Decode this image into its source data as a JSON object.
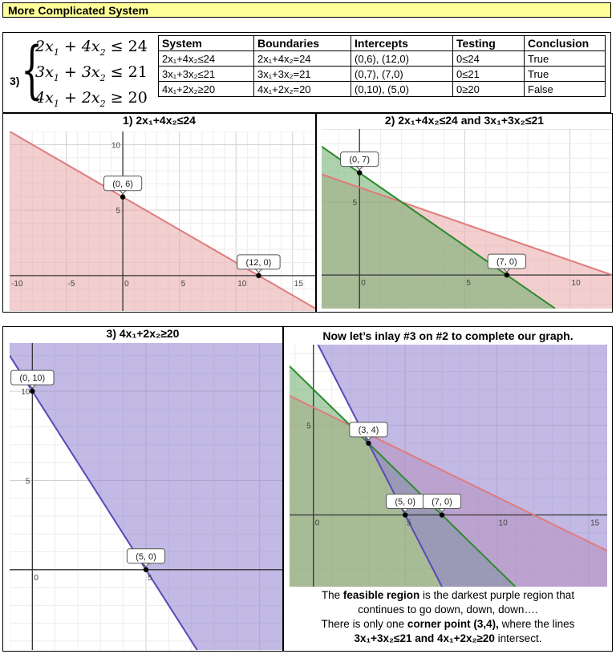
{
  "header": {
    "title": "More Complicated System"
  },
  "system": {
    "number": "3)",
    "inequalities": [
      {
        "a": "2",
        "b": "4",
        "op": "≤",
        "c": "24"
      },
      {
        "a": "3",
        "b": "3",
        "op": "≤",
        "c": "21"
      },
      {
        "a": "4",
        "b": "2",
        "op": "≥",
        "c": "20"
      }
    ]
  },
  "table": {
    "headers": [
      "System",
      "Boundaries",
      "Intercepts",
      "Testing",
      "Conclusion"
    ],
    "rows": [
      [
        "2x₁+4x₂≤24",
        "2x₁+4x₂=24",
        "(0,6), (12,0)",
        "0≤24",
        "True"
      ],
      [
        "3x₁+3x₂≤21",
        "3x₁+3x₂=21",
        "(0,7), (7,0)",
        "0≤21",
        "True"
      ],
      [
        "4x₁+2x₂≥20",
        "4x₁+2x₂=20",
        "(0,10), (5,0)",
        "0≥20",
        "False"
      ]
    ]
  },
  "graphs": {
    "g1": {
      "title": "1) 2x₁+4x₂≤24"
    },
    "g2": {
      "title": "2)  2x₁+4x₂≤24   and   3x₁+3x₂≤21"
    },
    "g3": {
      "title": "3) 4x₁+2x₂≥20"
    },
    "g4": {
      "title": "Now let’s inlay #3 on #2 to complete our graph."
    }
  },
  "colors": {
    "red": "#e8a5a5",
    "red_line": "#e07b7b",
    "green": "#6aab6a",
    "green_line": "#2d8a2d",
    "purple": "#8f7fd0",
    "purple_line": "#5b48b8"
  },
  "caption": {
    "l1a": "The ",
    "l1b": "feasible region",
    "l1c": " is the darkest purple region that",
    "l2": "continues to go down, down, down….",
    "l3a": "There is only one ",
    "l3b": "corner point (3,4),",
    "l3c": " where the lines",
    "l4a": "3x₁+3x₂≤21",
    "l4b": " and ",
    "l4c": "4x₁+2x₂≥20",
    "l4d": " intersect."
  },
  "chart_data": [
    {
      "type": "area",
      "title": "1) 2x₁+4x₂≤24",
      "xlim": [
        -10,
        17
      ],
      "ylim": [
        -2.7,
        11
      ],
      "xticks": [
        -10,
        -5,
        0,
        5,
        10,
        15
      ],
      "yticks": [
        5,
        10
      ],
      "series": [
        {
          "type": "half-plane",
          "boundary": {
            "a": 2,
            "b": 4,
            "c": 24
          },
          "op": "≤",
          "color": "#e8a5a5"
        }
      ],
      "points": [
        {
          "x": 0,
          "y": 6,
          "label": "(0, 6)"
        },
        {
          "x": 12,
          "y": 0,
          "label": "(12, 0)"
        }
      ]
    },
    {
      "type": "area",
      "title": "2)  2x₁+4x₂≤24   and   3x₁+3x₂≤21",
      "xlim": [
        -1.8,
        12
      ],
      "ylim": [
        -2.3,
        10
      ],
      "xticks": [
        0,
        5,
        10
      ],
      "yticks": [
        5
      ],
      "series": [
        {
          "type": "half-plane",
          "boundary": {
            "a": 2,
            "b": 4,
            "c": 24
          },
          "op": "≤",
          "color": "#e8a5a5"
        },
        {
          "type": "half-plane",
          "boundary": {
            "a": 3,
            "b": 3,
            "c": 21
          },
          "op": "≤",
          "color": "#6aab6a"
        }
      ],
      "points": [
        {
          "x": 0,
          "y": 7,
          "label": "(0, 7)"
        },
        {
          "x": 7,
          "y": 0,
          "label": "(7, 0)"
        }
      ]
    },
    {
      "type": "area",
      "title": "3) 4x₁+2x₂≥20",
      "xlim": [
        -1,
        11
      ],
      "ylim": [
        -4.5,
        12.7
      ],
      "xticks": [
        0,
        5
      ],
      "yticks": [
        5,
        10
      ],
      "series": [
        {
          "type": "half-plane",
          "boundary": {
            "a": 4,
            "b": 2,
            "c": 20
          },
          "op": "≥",
          "color": "#8f7fd0"
        }
      ],
      "points": [
        {
          "x": 0,
          "y": 10,
          "label": "(0, 10)"
        },
        {
          "x": 5,
          "y": 0,
          "label": "(5, 0)"
        }
      ]
    },
    {
      "type": "area",
      "title": "Now let’s inlay #3 on #2 to complete our graph.",
      "xlim": [
        -1.3,
        16
      ],
      "ylim": [
        -4,
        9.5
      ],
      "xticks": [
        0,
        5,
        10,
        15
      ],
      "yticks": [
        5
      ],
      "series": [
        {
          "type": "half-plane",
          "boundary": {
            "a": 2,
            "b": 4,
            "c": 24
          },
          "op": "≤",
          "color": "#e8a5a5"
        },
        {
          "type": "half-plane",
          "boundary": {
            "a": 3,
            "b": 3,
            "c": 21
          },
          "op": "≤",
          "color": "#6aab6a"
        },
        {
          "type": "half-plane",
          "boundary": {
            "a": 4,
            "b": 2,
            "c": 20
          },
          "op": "≥",
          "color": "#8f7fd0"
        }
      ],
      "points": [
        {
          "x": 3,
          "y": 4,
          "label": "(3, 4)"
        },
        {
          "x": 5,
          "y": 0,
          "label": "(5, 0)"
        },
        {
          "x": 7,
          "y": 0,
          "label": "(7, 0)"
        }
      ]
    }
  ]
}
